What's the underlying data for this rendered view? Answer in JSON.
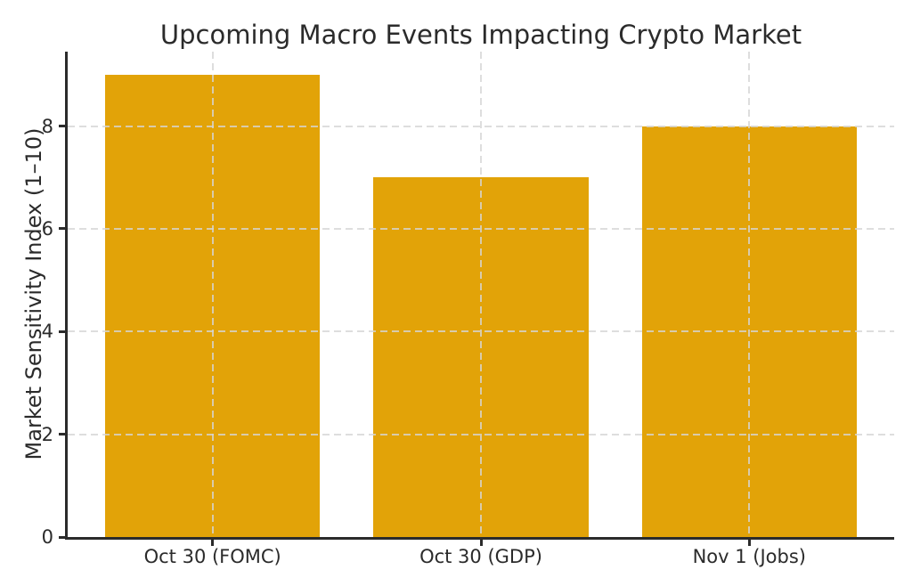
{
  "chart_data": {
    "type": "bar",
    "title": "Upcoming Macro Events Impacting Crypto Market",
    "categories": [
      "Oct 30 (FOMC)",
      "Oct 30 (GDP)",
      "Nov 1 (Jobs)"
    ],
    "values": [
      9,
      7,
      8
    ],
    "xlabel": "",
    "ylabel": "Market Sensitivity Index (1–10)",
    "ylim": [
      0,
      9.45
    ],
    "yticks": [
      0,
      2,
      4,
      6,
      8
    ],
    "xlim": [
      -0.54,
      2.54
    ],
    "bar_width_units": 0.8,
    "grid": true,
    "grid_style": "dashed",
    "grid_on_top_of_bars": true,
    "legend_position": "none",
    "colors": {
      "bar": "#e2a308",
      "grid": "#d5d5d5",
      "spine": "#2b2b2b",
      "text": "#2b2b2b",
      "background": "#ffffff"
    }
  }
}
